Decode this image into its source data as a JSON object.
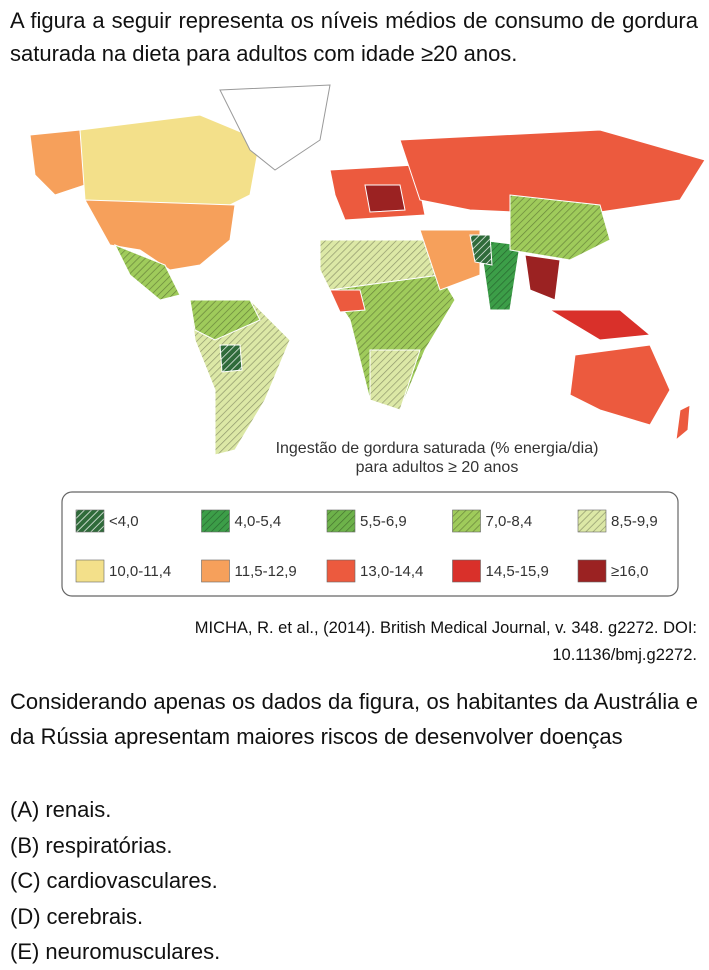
{
  "intro": "A figura a seguir representa os níveis médios de consumo de gordura saturada na dieta para adultos com idade ≥20 anos.",
  "map": {
    "caption_line1": "Ingestão de gordura saturada (% energia/dia)",
    "caption_line2": "para adultos ≥ 20 anos"
  },
  "legend": [
    {
      "label": "<4,0",
      "color": "#2f6b3a",
      "hatch": true
    },
    {
      "label": "4,0-5,4",
      "color": "#3c9e48",
      "hatch": true
    },
    {
      "label": "5,5-6,9",
      "color": "#6db24a",
      "hatch": true
    },
    {
      "label": "7,0-8,4",
      "color": "#9fcb5b",
      "hatch": true
    },
    {
      "label": "8,5-9,9",
      "color": "#dce8a6",
      "hatch": true
    },
    {
      "label": "10,0-11,4",
      "color": "#f3e08a",
      "hatch": false
    },
    {
      "label": "11,5-12,9",
      "color": "#f6a05b",
      "hatch": false
    },
    {
      "label": "13,0-14,4",
      "color": "#ec5a3e",
      "hatch": false
    },
    {
      "label": "14,5-15,9",
      "color": "#d9302a",
      "hatch": false
    },
    {
      "label": "≥16,0",
      "color": "#9b2222",
      "hatch": false
    }
  ],
  "citation": {
    "line1": "MICHA, R. et al., (2014). British Medical Journal, v. 348. g2272. DOI:",
    "line2": "10.1136/bmj.g2272."
  },
  "question": "Considerando apenas os dados da figura, os habitantes da Austrália e da Rússia apresentam maiores riscos de desenvolver doenças",
  "options": [
    {
      "letter": "(A)",
      "text": "renais."
    },
    {
      "letter": "(B)",
      "text": "respiratórias."
    },
    {
      "letter": "(C)",
      "text": "cardiovasculares."
    },
    {
      "letter": "(D)",
      "text": "cerebrais."
    },
    {
      "letter": "(E)",
      "text": "neuromusculares."
    }
  ]
}
